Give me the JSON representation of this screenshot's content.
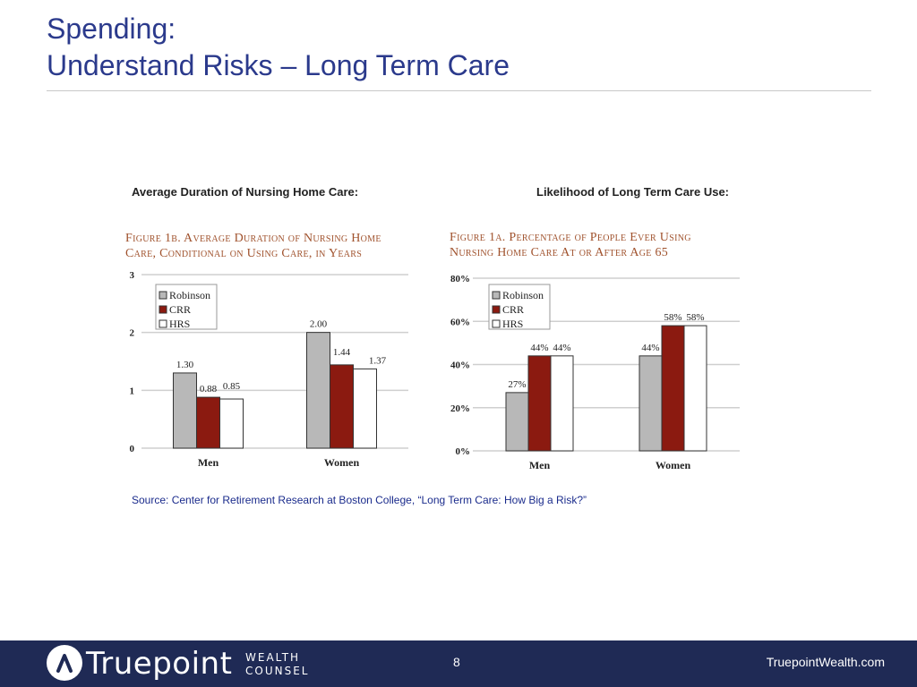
{
  "slide": {
    "title_line1": "Spending:",
    "title_line2": "Understand Risks – Long Term Care",
    "left_heading": "Average Duration of Nursing Home Care:",
    "right_heading": "Likelihood of Long Term Care Use:",
    "source": "Source: Center for Retirement Research at Boston College, “Long Term Care: How Big a Risk?”"
  },
  "footer": {
    "logo_text": "Truepoint",
    "logo_sub1": "WEALTH",
    "logo_sub2": "COUNSEL",
    "page_number": "8",
    "website": "TruepointWealth.com"
  },
  "colors": {
    "robinson": "#b8b8b8",
    "crr": "#8b1a10",
    "hrs": "#ffffff",
    "title": "#2b3a8c",
    "footer": "#1f2a55"
  },
  "chart_data": [
    {
      "type": "bar",
      "caption_line1": "Figure 1b. Average Duration of Nursing Home",
      "caption_line2": "Care, Conditional on Using Care, in Years",
      "categories": [
        "Men",
        "Women"
      ],
      "series": [
        {
          "name": "Robinson",
          "values": [
            1.3,
            2.0
          ],
          "labels": [
            "1.30",
            "2.00"
          ]
        },
        {
          "name": "CRR",
          "values": [
            0.88,
            1.44
          ],
          "labels": [
            "0.88",
            "1.44"
          ]
        },
        {
          "name": "HRS",
          "values": [
            0.85,
            1.37
          ],
          "labels": [
            "0.85",
            "1.37"
          ]
        }
      ],
      "ylim": [
        0,
        3
      ],
      "yticks": [
        0,
        1,
        2,
        3
      ],
      "ytick_labels": [
        "0",
        "1",
        "2",
        "3"
      ],
      "grid": true,
      "legend": "top-left"
    },
    {
      "type": "bar",
      "caption_line1": "Figure 1a. Percentage of People Ever Using",
      "caption_line2": "Nursing Home Care At or After Age 65",
      "categories": [
        "Men",
        "Women"
      ],
      "series": [
        {
          "name": "Robinson",
          "values": [
            27,
            44
          ],
          "labels": [
            "27%",
            "44%"
          ]
        },
        {
          "name": "CRR",
          "values": [
            44,
            58
          ],
          "labels": [
            "44%",
            "58%"
          ]
        },
        {
          "name": "HRS",
          "values": [
            44,
            58
          ],
          "labels": [
            "44%",
            "58%"
          ]
        }
      ],
      "ylim": [
        0,
        80
      ],
      "yticks": [
        0,
        20,
        40,
        60,
        80
      ],
      "ytick_labels": [
        "0%",
        "20%",
        "40%",
        "60%",
        "80%"
      ],
      "grid": true,
      "legend": "top-left"
    }
  ]
}
